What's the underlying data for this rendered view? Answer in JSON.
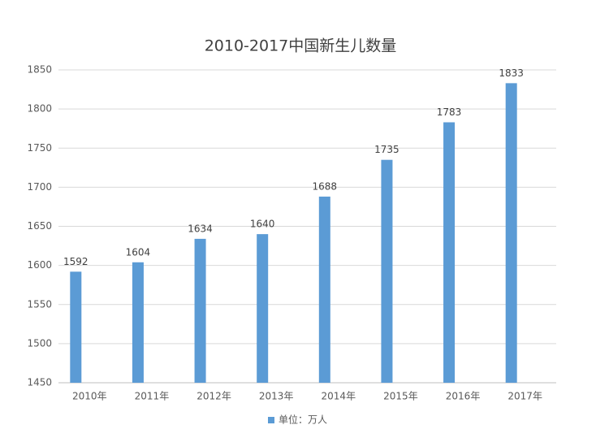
{
  "chart_data": {
    "type": "bar",
    "title": "2010-2017中国新生儿数量",
    "categories": [
      "2010年",
      "2011年",
      "2012年",
      "2013年",
      "2014年",
      "2015年",
      "2016年",
      "2017年"
    ],
    "series": [
      {
        "name": "单位：万人",
        "color": "#5b9bd5",
        "values": [
          1592,
          1604,
          1634,
          1640,
          1688,
          1735,
          1783,
          1833
        ]
      }
    ],
    "ylim": [
      1450,
      1850
    ],
    "yticks": [
      1450,
      1500,
      1550,
      1600,
      1650,
      1700,
      1750,
      1800,
      1850
    ],
    "grid": true,
    "legend": "bottom"
  }
}
